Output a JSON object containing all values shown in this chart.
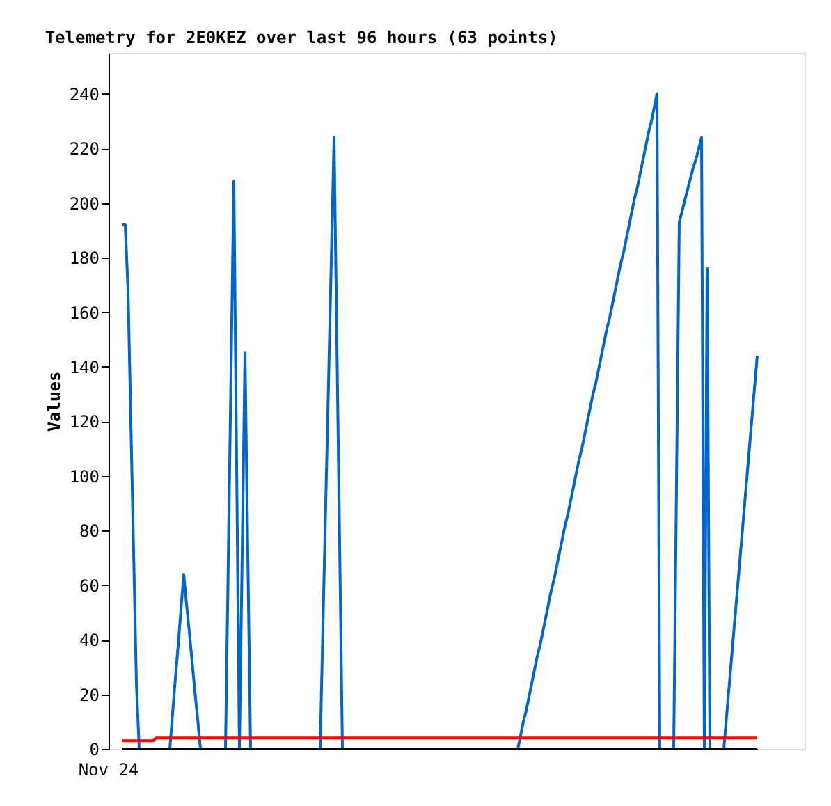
{
  "chart_data": {
    "type": "line",
    "title": "Telemetry for 2E0KEZ over last 96 hours (63 points)",
    "ylabel": "Values",
    "annotations": [
      "Nov 24"
    ],
    "ylim": [
      0,
      255
    ],
    "yticks": [
      0,
      20,
      40,
      60,
      80,
      100,
      120,
      140,
      160,
      180,
      200,
      220,
      240
    ],
    "grid": false,
    "legend": false,
    "categories": [
      null,
      null,
      null,
      null,
      null,
      null,
      null,
      null,
      null,
      null,
      null,
      null,
      null,
      null,
      null,
      null,
      null,
      null,
      null,
      null,
      null,
      null,
      null,
      null,
      null,
      null,
      null,
      null,
      null,
      null,
      null,
      null,
      null,
      null,
      null,
      null,
      null,
      null,
      null,
      null,
      null,
      null,
      null,
      null,
      null,
      null,
      null,
      null,
      null,
      null,
      null,
      null,
      null,
      null,
      null,
      null,
      null,
      null,
      null,
      null,
      null,
      null,
      null,
      null,
      null,
      null,
      null,
      null,
      null,
      null,
      null,
      null,
      null,
      null,
      null,
      null,
      null,
      null,
      null,
      null,
      null,
      null,
      null,
      null,
      null,
      null,
      null,
      null,
      null,
      null,
      null,
      null,
      null,
      null,
      null,
      null,
      null,
      null,
      null,
      null,
      null,
      null,
      null,
      null,
      null,
      null,
      null,
      null,
      null,
      null,
      null,
      null,
      null,
      null,
      null,
      null,
      null,
      null,
      null,
      null,
      null,
      null,
      null,
      null,
      null,
      null,
      null,
      null,
      null,
      null,
      null,
      null,
      null,
      null,
      null,
      null,
      null,
      null,
      null,
      null,
      null,
      null,
      null,
      null,
      null,
      null,
      null,
      null,
      null,
      null,
      null,
      null,
      null,
      null,
      null,
      null,
      null,
      null,
      null,
      null,
      null,
      null,
      null,
      null,
      null,
      null,
      null,
      null,
      null,
      null,
      null,
      null,
      null,
      null,
      null,
      null,
      null,
      null,
      null,
      null,
      null,
      null,
      null,
      null,
      null,
      null,
      null,
      null,
      null,
      null,
      null,
      null,
      null,
      null,
      null,
      null,
      null,
      null,
      null,
      null,
      null,
      null,
      null,
      null,
      null,
      null,
      null,
      null,
      null,
      null,
      null,
      null,
      null,
      null,
      null,
      null,
      null,
      null,
      null,
      null,
      null,
      null,
      null,
      null,
      null,
      null,
      null,
      null,
      null
    ],
    "series": [
      {
        "color": "#0066cc",
        "values": [
          192,
          192,
          168,
          120,
          72,
          24,
          0,
          0,
          0,
          0,
          0,
          0,
          0,
          0,
          0,
          0,
          0,
          0,
          13,
          26,
          38,
          51,
          64,
          53,
          43,
          32,
          21,
          11,
          0,
          0,
          0,
          0,
          0,
          0,
          0,
          0,
          0,
          0,
          69,
          139,
          208,
          104,
          0,
          72,
          145,
          72,
          0,
          0,
          0,
          0,
          0,
          0,
          0,
          0,
          0,
          0,
          0,
          0,
          0,
          0,
          0,
          0,
          0,
          0,
          0,
          0,
          0,
          0,
          0,
          0,
          0,
          0,
          45,
          90,
          134,
          179,
          224,
          149,
          75,
          0,
          0,
          0,
          0,
          0,
          0,
          0,
          0,
          0,
          0,
          0,
          0,
          0,
          0,
          0,
          0,
          0,
          0,
          0,
          0,
          0,
          0,
          0,
          0,
          0,
          0,
          0,
          0,
          0,
          0,
          0,
          0,
          0,
          0,
          0,
          0,
          0,
          0,
          0,
          0,
          0,
          0,
          0,
          0,
          0,
          0,
          0,
          0,
          0,
          0,
          0,
          0,
          0,
          0,
          0,
          0,
          0,
          0,
          0,
          0,
          0,
          0,
          0,
          0,
          5,
          10,
          14,
          19,
          24,
          29,
          34,
          38,
          43,
          48,
          53,
          58,
          62,
          67,
          72,
          77,
          82,
          86,
          91,
          96,
          101,
          106,
          110,
          115,
          120,
          125,
          130,
          134,
          139,
          144,
          149,
          154,
          158,
          163,
          168,
          173,
          178,
          182,
          187,
          192,
          197,
          202,
          206,
          211,
          216,
          221,
          226,
          230,
          235,
          240,
          0,
          0,
          0,
          0,
          0,
          0,
          97,
          193,
          197,
          201,
          205,
          209,
          213,
          216,
          220,
          224,
          0,
          176,
          0,
          0,
          0,
          0,
          0,
          0,
          12,
          24,
          36,
          48,
          60,
          72,
          84,
          96,
          108,
          120,
          132,
          144
        ]
      },
      {
        "color": "#ff0000",
        "values": [
          3,
          3,
          3,
          3,
          3,
          3,
          3,
          3,
          3,
          3,
          3,
          3,
          4,
          4,
          4,
          4,
          4,
          4,
          4,
          4,
          4,
          4,
          4,
          4,
          4,
          4,
          4,
          4,
          4,
          4,
          4,
          4,
          4,
          4,
          4,
          4,
          4,
          4,
          4,
          4,
          4,
          4,
          4,
          4,
          4,
          4,
          4,
          4,
          4,
          4,
          4,
          4,
          4,
          4,
          4,
          4,
          4,
          4,
          4,
          4,
          4,
          4,
          4,
          4,
          4,
          4,
          4,
          4,
          4,
          4,
          4,
          4,
          4,
          4,
          4,
          4,
          4,
          4,
          4,
          4,
          4,
          4,
          4,
          4,
          4,
          4,
          4,
          4,
          4,
          4,
          4,
          4,
          4,
          4,
          4,
          4,
          4,
          4,
          4,
          4,
          4,
          4,
          4,
          4,
          4,
          4,
          4,
          4,
          4,
          4,
          4,
          4,
          4,
          4,
          4,
          4,
          4,
          4,
          4,
          4,
          4,
          4,
          4,
          4,
          4,
          4,
          4,
          4,
          4,
          4,
          4,
          4,
          4,
          4,
          4,
          4,
          4,
          4,
          4,
          4,
          4,
          4,
          4,
          4,
          4,
          4,
          4,
          4,
          4,
          4,
          4,
          4,
          4,
          4,
          4,
          4,
          4,
          4,
          4,
          4,
          4,
          4,
          4,
          4,
          4,
          4,
          4,
          4,
          4,
          4,
          4,
          4,
          4,
          4,
          4,
          4,
          4,
          4,
          4,
          4,
          4,
          4,
          4,
          4,
          4,
          4,
          4,
          4,
          4,
          4,
          4,
          4,
          4,
          4,
          4,
          4,
          4,
          4,
          4,
          4,
          4,
          4,
          4,
          4,
          4,
          4,
          4,
          4,
          4,
          4,
          4,
          4,
          4,
          4,
          4,
          4,
          4,
          4,
          4,
          4,
          4,
          4,
          4,
          4,
          4,
          4,
          4,
          4,
          4
        ]
      },
      {
        "color": "#000000",
        "values": [
          0,
          0,
          0,
          0,
          0,
          0,
          0,
          0,
          0,
          0,
          0,
          0,
          0,
          0,
          0,
          0,
          0,
          0,
          0,
          0,
          0,
          0,
          0,
          0,
          0,
          0,
          0,
          0,
          0,
          0,
          0,
          0,
          0,
          0,
          0,
          0,
          0,
          0,
          0,
          0,
          0,
          0,
          0,
          0,
          0,
          0,
          0,
          0,
          0,
          0,
          0,
          0,
          0,
          0,
          0,
          0,
          0,
          0,
          0,
          0,
          0,
          0,
          0,
          0,
          0,
          0,
          0,
          0,
          0,
          0,
          0,
          0,
          0,
          0,
          0,
          0,
          0,
          0,
          0,
          0,
          0,
          0,
          0,
          0,
          0,
          0,
          0,
          0,
          0,
          0,
          0,
          0,
          0,
          0,
          0,
          0,
          0,
          0,
          0,
          0,
          0,
          0,
          0,
          0,
          0,
          0,
          0,
          0,
          0,
          0,
          0,
          0,
          0,
          0,
          0,
          0,
          0,
          0,
          0,
          0,
          0,
          0,
          0,
          0,
          0,
          0,
          0,
          0,
          0,
          0,
          0,
          0,
          0,
          0,
          0,
          0,
          0,
          0,
          0,
          0,
          0,
          0,
          0,
          0,
          0,
          0,
          0,
          0,
          0,
          0,
          0,
          0,
          0,
          0,
          0,
          0,
          0,
          0,
          0,
          0,
          0,
          0,
          0,
          0,
          0,
          0,
          0,
          0,
          0,
          0,
          0,
          0,
          0,
          0,
          0,
          0,
          0,
          0,
          0,
          0,
          0,
          0,
          0,
          0,
          0,
          0,
          0,
          0,
          0,
          0,
          0,
          0,
          0,
          0,
          0,
          0,
          0,
          0,
          0,
          0,
          0,
          0,
          0,
          0,
          0,
          0,
          0,
          0,
          0,
          0,
          0,
          0,
          0,
          0,
          0,
          0,
          0,
          0,
          0,
          0,
          0,
          0,
          0,
          0,
          0,
          0,
          0,
          0,
          0
        ]
      }
    ]
  }
}
